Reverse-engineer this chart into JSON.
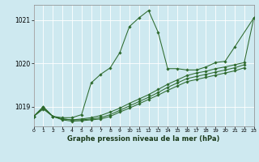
{
  "title": "Graphe pression niveau de la mer (hPa)",
  "bg": "#cee9f0",
  "grid_color": "#ffffff",
  "lc": "#2d6a2d",
  "xlim": [
    0,
    23
  ],
  "ylim": [
    1018.55,
    1021.35
  ],
  "xticks": [
    0,
    1,
    2,
    3,
    4,
    5,
    6,
    7,
    8,
    9,
    10,
    11,
    12,
    13,
    14,
    15,
    16,
    17,
    18,
    19,
    20,
    21,
    22,
    23
  ],
  "yticks": [
    1019,
    1020,
    1021
  ],
  "series": [
    {
      "x": [
        0,
        1,
        2,
        3,
        4,
        5,
        6,
        7,
        8,
        9,
        10,
        11,
        12,
        13,
        14,
        15,
        16,
        17,
        18,
        19,
        20,
        21,
        23
      ],
      "y": [
        1018.78,
        1019.0,
        1018.78,
        1018.75,
        1018.75,
        1018.82,
        1019.55,
        1019.75,
        1019.9,
        1020.25,
        1020.85,
        1021.05,
        1021.22,
        1020.72,
        1019.88,
        1019.88,
        1019.85,
        1019.85,
        1019.92,
        1020.02,
        1020.05,
        1020.38,
        1021.05
      ]
    },
    {
      "x": [
        0,
        1,
        2,
        3,
        4,
        5,
        6,
        7,
        8,
        9,
        10,
        11,
        12,
        13,
        14,
        15,
        16,
        17,
        18,
        19,
        20,
        21,
        22,
        23
      ],
      "y": [
        1018.78,
        1019.0,
        1018.78,
        1018.72,
        1018.7,
        1018.72,
        1018.75,
        1018.8,
        1018.88,
        1018.97,
        1019.08,
        1019.18,
        1019.28,
        1019.4,
        1019.52,
        1019.62,
        1019.72,
        1019.78,
        1019.82,
        1019.88,
        1019.92,
        1019.97,
        1020.02,
        1021.05
      ]
    },
    {
      "x": [
        0,
        1,
        2,
        3,
        4,
        5,
        6,
        7,
        8,
        9,
        10,
        11,
        12,
        13,
        14,
        15,
        16,
        17,
        18,
        19,
        20,
        21,
        22
      ],
      "y": [
        1018.78,
        1018.97,
        1018.78,
        1018.72,
        1018.7,
        1018.7,
        1018.72,
        1018.75,
        1018.82,
        1018.92,
        1019.02,
        1019.12,
        1019.22,
        1019.33,
        1019.45,
        1019.55,
        1019.65,
        1019.7,
        1019.75,
        1019.8,
        1019.85,
        1019.9,
        1019.97
      ]
    },
    {
      "x": [
        0,
        1,
        2,
        3,
        4,
        5,
        6,
        7,
        8,
        9,
        10,
        11,
        12,
        13,
        14,
        15,
        16,
        17,
        18,
        19,
        20,
        21,
        22
      ],
      "y": [
        1018.78,
        1018.95,
        1018.78,
        1018.7,
        1018.67,
        1018.68,
        1018.7,
        1018.72,
        1018.78,
        1018.88,
        1018.97,
        1019.07,
        1019.17,
        1019.27,
        1019.38,
        1019.48,
        1019.58,
        1019.63,
        1019.68,
        1019.73,
        1019.78,
        1019.83,
        1019.9
      ]
    }
  ]
}
